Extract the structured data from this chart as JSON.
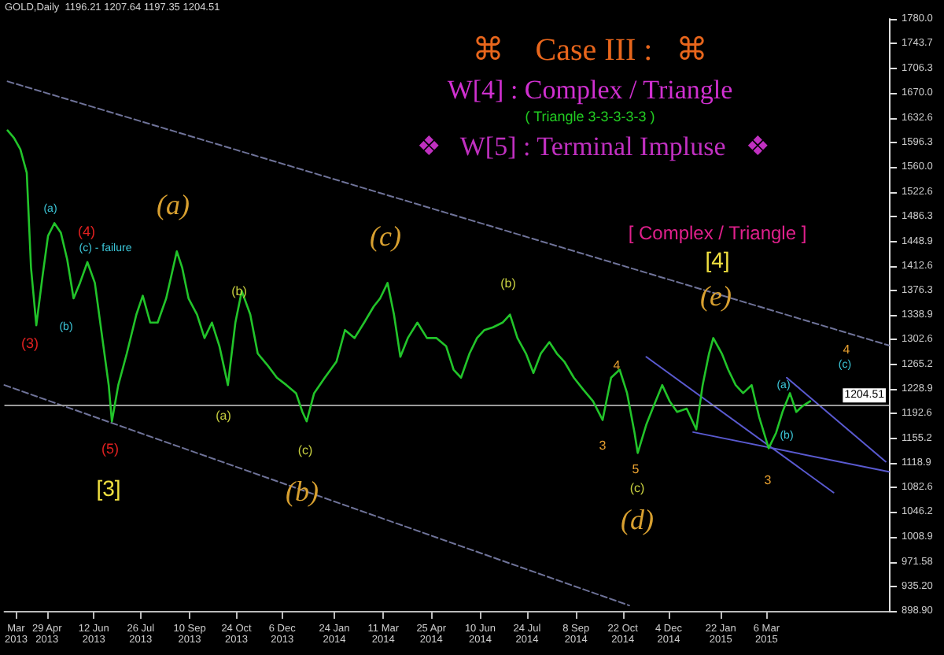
{
  "chart_data": {
    "type": "line",
    "title": "⌘    Case III :   ⌘",
    "subtitle": "GOLD,Daily  1196.21 1207.64 1197.35 1204.51",
    "annotations": [
      "W[4] : Complex / Triangle",
      "( Triangle 3-3-3-3-3 )",
      "❖   W[5] : Terminal Impluse   ❖",
      "(3)",
      "(a)",
      "(b)",
      "(4)",
      "(c) - failure",
      "(5)",
      "[3]",
      "(a)",
      "(b)",
      "(a)",
      "(c)",
      "(b)",
      "(c)",
      "(b)",
      "4",
      "3",
      "5",
      "(c)",
      "(d)",
      "[ Complex / Triangle ]",
      "[4]",
      "(e)",
      "3",
      "(a)",
      "(b)",
      "4",
      "(c)"
    ],
    "series": [
      {
        "color": "#22c42a",
        "x": [
          "2013-03-23",
          "2013-03-29",
          "2013-04-04",
          "2013-04-10",
          "2013-04-14",
          "2013-04-19",
          "2013-04-25",
          "2013-04-30",
          "2013-05-06",
          "2013-05-12",
          "2013-05-18",
          "2013-05-24",
          "2013-05-30",
          "2013-06-06",
          "2013-06-13",
          "2013-06-20",
          "2013-06-26",
          "2013-06-29",
          "2013-07-05",
          "2013-07-13",
          "2013-07-22",
          "2013-07-28",
          "2013-08-04",
          "2013-08-11",
          "2013-08-19",
          "2013-08-24",
          "2013-08-29",
          "2013-09-03",
          "2013-09-09",
          "2013-09-17",
          "2013-09-24",
          "2013-10-01",
          "2013-10-08",
          "2013-10-16",
          "2013-10-23",
          "2013-10-29",
          "2013-11-06",
          "2013-11-13",
          "2013-11-22",
          "2013-12-01",
          "2013-12-10",
          "2013-12-19",
          "2013-12-25",
          "2013-12-29",
          "2014-01-05",
          "2014-01-15",
          "2014-01-26",
          "2014-02-03",
          "2014-02-12",
          "2014-02-21",
          "2014-03-02",
          "2014-03-08",
          "2014-03-15",
          "2014-03-21",
          "2014-03-27",
          "2014-04-03",
          "2014-04-12",
          "2014-04-21",
          "2014-04-30",
          "2014-05-09",
          "2014-05-16",
          "2014-05-23",
          "2014-05-31",
          "2014-06-07",
          "2014-06-14",
          "2014-06-22",
          "2014-07-01",
          "2014-07-08",
          "2014-07-15",
          "2014-07-23",
          "2014-07-30",
          "2014-08-06",
          "2014-08-14",
          "2014-08-21",
          "2014-08-28",
          "2014-09-06",
          "2014-09-15",
          "2014-09-24",
          "2014-10-03",
          "2014-10-11",
          "2014-10-19",
          "2014-10-26",
          "2014-11-02",
          "2014-11-05",
          "2014-11-13",
          "2014-11-19",
          "2014-11-28",
          "2014-12-05",
          "2014-12-12",
          "2014-12-21",
          "2014-12-30",
          "2015-01-05",
          "2015-01-11",
          "2015-01-15",
          "2015-01-23",
          "2015-01-29",
          "2015-02-05",
          "2015-02-12",
          "2015-02-20",
          "2015-02-27",
          "2015-03-08",
          "2015-03-15",
          "2015-03-21",
          "2015-03-28",
          "2015-04-03",
          "2015-04-09",
          "2015-04-16"
        ],
        "values": [
          1614,
          1603,
          1586,
          1551,
          1410,
          1324,
          1399,
          1457,
          1476,
          1462,
          1422,
          1364,
          1387,
          1418,
          1387,
          1305,
          1235,
          1181,
          1235,
          1282,
          1340,
          1368,
          1328,
          1328,
          1364,
          1399,
          1434,
          1410,
          1364,
          1340,
          1305,
          1328,
          1293,
          1235,
          1328,
          1375,
          1340,
          1282,
          1265,
          1246,
          1235,
          1223,
          1195,
          1181,
          1223,
          1246,
          1270,
          1317,
          1305,
          1328,
          1352,
          1364,
          1387,
          1340,
          1277,
          1305,
          1328,
          1305,
          1305,
          1293,
          1258,
          1246,
          1282,
          1305,
          1317,
          1321,
          1328,
          1340,
          1305,
          1282,
          1253,
          1282,
          1299,
          1282,
          1270,
          1246,
          1228,
          1211,
          1183,
          1246,
          1258,
          1223,
          1164,
          1134,
          1176,
          1200,
          1235,
          1211,
          1195,
          1200,
          1169,
          1235,
          1282,
          1305,
          1282,
          1258,
          1235,
          1223,
          1235,
          1188,
          1141,
          1164,
          1195,
          1223,
          1195,
          1204,
          1211
        ]
      },
      {
        "color": "#6f7399",
        "line_style": "dashed",
        "x": [
          "2013-03-23",
          "2015-06-29"
        ],
        "values": [
          1687,
          1294
        ]
      },
      {
        "color": "#6f7399",
        "line_style": "dashed",
        "x": [
          "2013-03-20",
          "2014-10-28"
        ],
        "values": [
          1235,
          907
        ]
      },
      {
        "color": "#5a5ad0",
        "x": [
          "2014-11-13",
          "2015-05-08"
        ],
        "values": [
          1277,
          1075
        ]
      },
      {
        "color": "#5a5ad0",
        "x": [
          "2014-12-27",
          "2015-06-29"
        ],
        "values": [
          1165,
          1106
        ]
      },
      {
        "color": "#5a5ad0",
        "x": [
          "2015-03-25",
          "2015-06-26"
        ],
        "values": [
          1246,
          1121
        ]
      }
    ],
    "ref_lines": [
      {
        "axis": "y",
        "value": 1204.51,
        "label": "1204.51",
        "color": "#9a9a9a"
      }
    ],
    "xlim": [
      "2013-03-20",
      "2015-06-29"
    ],
    "xticks": [
      {
        "value": "2013-03-31",
        "label": "Mar 2013"
      },
      {
        "value": "2013-04-29",
        "label": "29 Apr 2013"
      },
      {
        "value": "2013-06-12",
        "label": "12 Jun 2013"
      },
      {
        "value": "2013-07-26",
        "label": "26 Jul 2013"
      },
      {
        "value": "2013-09-10",
        "label": "10 Sep 2013"
      },
      {
        "value": "2013-10-24",
        "label": "24 Oct 2013"
      },
      {
        "value": "2013-12-06",
        "label": "6 Dec 2013"
      },
      {
        "value": "2014-01-24",
        "label": "24 Jan 2014"
      },
      {
        "value": "2014-03-11",
        "label": "11 Mar 2014"
      },
      {
        "value": "2014-04-25",
        "label": "25 Apr 2014"
      },
      {
        "value": "2014-06-10",
        "label": "10 Jun 2014"
      },
      {
        "value": "2014-07-24",
        "label": "24 Jul 2014"
      },
      {
        "value": "2014-09-08",
        "label": "8 Sep 2014"
      },
      {
        "value": "2014-10-22",
        "label": "22 Oct 2014"
      },
      {
        "value": "2014-12-04",
        "label": "4 Dec 2014"
      },
      {
        "value": "2015-01-22",
        "label": "22 Jan 2015"
      },
      {
        "value": "2015-03-06",
        "label": "6 Mar 2015"
      }
    ],
    "ylim": [
      898.9,
      1780
    ],
    "yticks": [
      {
        "value": 1780,
        "label": "1780.0"
      },
      {
        "value": 1743.7,
        "label": "1743.7"
      },
      {
        "value": 1706.3,
        "label": "1706.3"
      },
      {
        "value": 1670,
        "label": "1670.0"
      },
      {
        "value": 1632.6,
        "label": "1632.6"
      },
      {
        "value": 1596.3,
        "label": "1596.3"
      },
      {
        "value": 1560,
        "label": "1560.0"
      },
      {
        "value": 1522.6,
        "label": "1522.6"
      },
      {
        "value": 1486.3,
        "label": "1486.3"
      },
      {
        "value": 1448.9,
        "label": "1448.9"
      },
      {
        "value": 1412.6,
        "label": "1412.6"
      },
      {
        "value": 1376.3,
        "label": "1376.3"
      },
      {
        "value": 1338.9,
        "label": "1338.9"
      },
      {
        "value": 1302.6,
        "label": "1302.6"
      },
      {
        "value": 1265.2,
        "label": "1265.2"
      },
      {
        "value": 1228.9,
        "label": "1228.9"
      },
      {
        "value": 1192.6,
        "label": "1192.6"
      },
      {
        "value": 1155.2,
        "label": "1155.2"
      },
      {
        "value": 1118.9,
        "label": "1118.9"
      },
      {
        "value": 1082.6,
        "label": "1082.6"
      },
      {
        "value": 1046.2,
        "label": "1046.2"
      },
      {
        "value": 1008.9,
        "label": "1008.9"
      },
      {
        "value": 971.58,
        "label": "971.58"
      },
      {
        "value": 935.2,
        "label": "935.20"
      },
      {
        "value": 898.9,
        "label": "898.90"
      }
    ],
    "grid": false,
    "marker": "none",
    "line_style": "solid"
  }
}
